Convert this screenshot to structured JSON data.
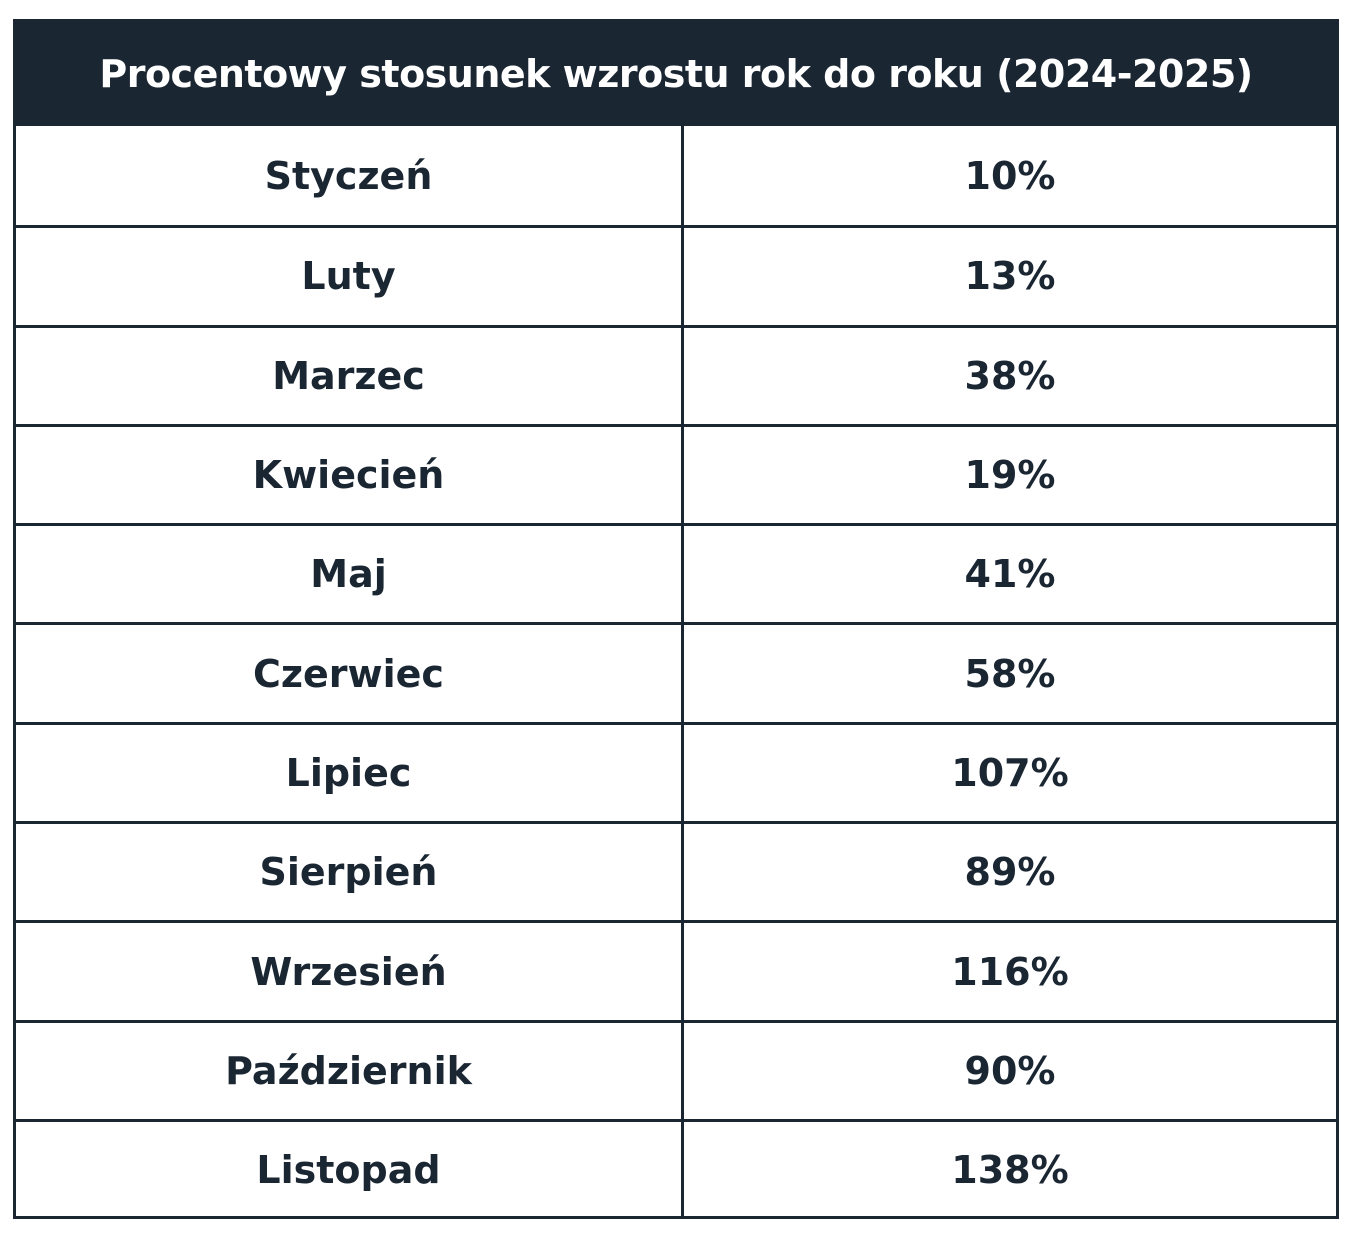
{
  "table": {
    "title": "Procentowy stosunek wzrostu rok do roku (2024-2025)",
    "rows": [
      {
        "month": "Styczeń",
        "value": "10%"
      },
      {
        "month": "Luty",
        "value": "13%"
      },
      {
        "month": "Marzec",
        "value": "38%"
      },
      {
        "month": "Kwiecień",
        "value": "19%"
      },
      {
        "month": "Maj",
        "value": "41%"
      },
      {
        "month": "Czerwiec",
        "value": "58%"
      },
      {
        "month": "Lipiec",
        "value": "107%"
      },
      {
        "month": "Sierpień",
        "value": "89%"
      },
      {
        "month": "Wrzesień",
        "value": "116%"
      },
      {
        "month": "Październik",
        "value": "90%"
      },
      {
        "month": "Listopad",
        "value": "138%"
      }
    ]
  },
  "colors": {
    "header_bg": "#1b2633",
    "header_text": "#ffffff",
    "text": "#1b2633",
    "border": "#1b2633"
  }
}
